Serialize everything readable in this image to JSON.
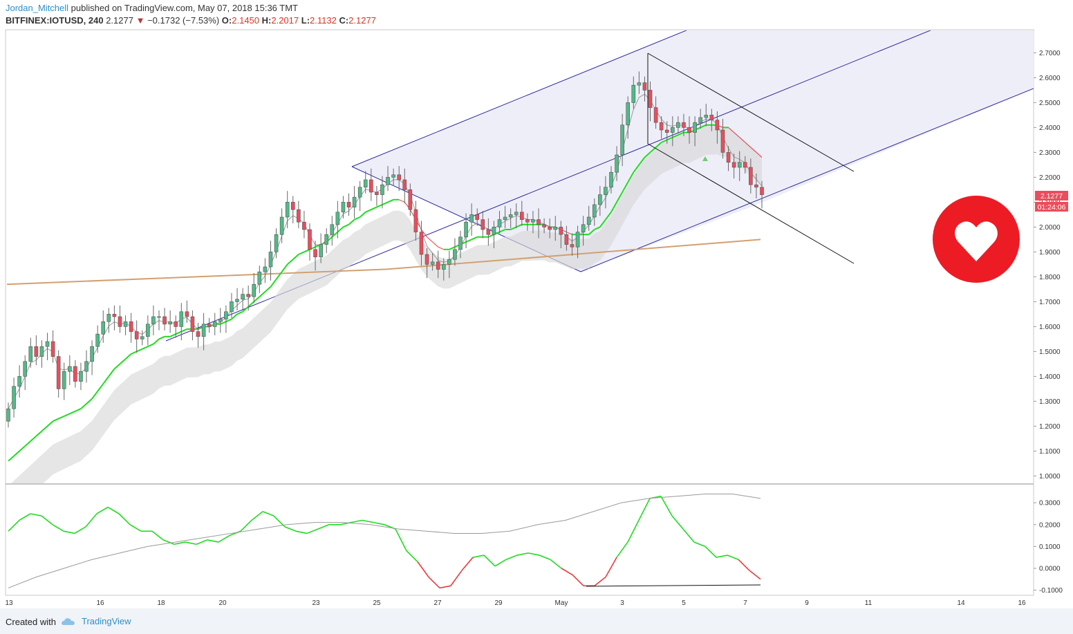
{
  "header": {
    "author": "Jordan_Mitchell",
    "published": "published on TradingView.com, May 07, 2018 15:36 TMT",
    "symbol": "BITFINEX:IOTUSD, 240",
    "last": "2.1277",
    "change": "−0.1732 (−7.53%)",
    "o_label": "O:",
    "o_value": "2.1450",
    "h_label": "H:",
    "h_value": "2.2017",
    "l_label": "L:",
    "l_value": "2.1132",
    "c_label": "C:",
    "c_value": "2.1277"
  },
  "price_tags": {
    "last_price": "2.1277",
    "countdown": "01:24:06"
  },
  "footer": {
    "created_with": "Created with",
    "brand": "TradingView"
  },
  "colors": {
    "up": "#53b987",
    "down": "#eb4d5c",
    "ema_up": "#1fdc1f",
    "ema_down": "#e53c3c",
    "sma": "#d2a070",
    "channel": "#2a2aa0",
    "channel_fill": "#eeeef8",
    "badge": "#ed1c24"
  },
  "badge_icon": "heart-icon",
  "chart_data": {
    "type": "candlestick",
    "x_ticks": [
      "13",
      "16",
      "18",
      "20",
      "23",
      "25",
      "27",
      "29",
      "May",
      "3",
      "5",
      "7",
      "9",
      "11",
      "14",
      "16"
    ],
    "price_axis": [
      "2.7000",
      "2.6000",
      "2.5000",
      "2.4000",
      "2.3000",
      "2.2000",
      "2.1000",
      "2.0000",
      "1.9000",
      "1.8000",
      "1.7000",
      "1.6000",
      "1.5000",
      "1.4000",
      "1.3000",
      "1.2000",
      "1.1000",
      "1.0000"
    ],
    "osc_axis": [
      "0.3000",
      "0.2000",
      "0.1000",
      "0.0000",
      "-0.1000"
    ],
    "ylim": [
      0.97,
      2.79
    ],
    "osc_ylim": [
      -0.11,
      0.375
    ],
    "close": [
      1.27,
      1.36,
      1.4,
      1.46,
      1.52,
      1.48,
      1.52,
      1.54,
      1.48,
      1.35,
      1.42,
      1.44,
      1.38,
      1.42,
      1.46,
      1.52,
      1.57,
      1.62,
      1.65,
      1.64,
      1.6,
      1.62,
      1.58,
      1.55,
      1.56,
      1.61,
      1.64,
      1.64,
      1.61,
      1.62,
      1.6,
      1.66,
      1.64,
      1.58,
      1.56,
      1.61,
      1.6,
      1.62,
      1.63,
      1.66,
      1.7,
      1.71,
      1.73,
      1.72,
      1.77,
      1.82,
      1.84,
      1.9,
      1.97,
      2.04,
      2.1,
      2.07,
      2.02,
      1.99,
      1.91,
      1.88,
      1.93,
      1.97,
      2.01,
      2.06,
      2.1,
      2.08,
      2.12,
      2.16,
      2.19,
      2.14,
      2.13,
      2.17,
      2.2,
      2.21,
      2.19,
      2.15,
      2.07,
      1.98,
      1.89,
      1.85,
      1.86,
      1.83,
      1.85,
      1.87,
      1.91,
      1.96,
      2.02,
      2.05,
      2.03,
      1.99,
      1.97,
      2.0,
      2.03,
      2.04,
      2.05,
      2.06,
      2.03,
      2.02,
      2.03,
      2.01,
      2.0,
      1.99,
      2.0,
      1.97,
      1.93,
      1.92,
      1.98,
      2.01,
      2.04,
      2.09,
      2.13,
      2.16,
      2.22,
      2.29,
      2.41,
      2.5,
      2.57,
      2.58,
      2.55,
      2.48,
      2.42,
      2.39,
      2.38,
      2.4,
      2.42,
      2.4,
      2.38,
      2.42,
      2.44,
      2.45,
      2.43,
      2.39,
      2.3,
      2.26,
      2.24,
      2.26,
      2.24,
      2.17,
      2.16,
      2.13
    ],
    "series": [
      {
        "name": "EMA",
        "values": [
          1.06,
          1.08,
          1.1,
          1.12,
          1.14,
          1.16,
          1.18,
          1.2,
          1.22,
          1.23,
          1.24,
          1.25,
          1.26,
          1.27,
          1.29,
          1.31,
          1.34,
          1.37,
          1.4,
          1.43,
          1.45,
          1.47,
          1.49,
          1.5,
          1.51,
          1.52,
          1.53,
          1.55,
          1.56,
          1.56,
          1.57,
          1.58,
          1.59,
          1.59,
          1.59,
          1.6,
          1.6,
          1.61,
          1.61,
          1.62,
          1.63,
          1.65,
          1.66,
          1.68,
          1.7,
          1.72,
          1.74,
          1.76,
          1.79,
          1.82,
          1.85,
          1.87,
          1.89,
          1.9,
          1.91,
          1.92,
          1.93,
          1.94,
          1.96,
          1.98,
          2.0,
          2.01,
          2.03,
          2.04,
          2.06,
          2.07,
          2.08,
          2.09,
          2.1,
          2.11,
          2.11,
          2.1,
          2.07,
          2.03,
          1.99,
          1.96,
          1.94,
          1.92,
          1.91,
          1.91,
          1.92,
          1.93,
          1.94,
          1.95,
          1.96,
          1.96,
          1.96,
          1.97,
          1.98,
          1.99,
          1.99,
          2.0,
          2.01,
          2.01,
          2.01,
          2.01,
          2.01,
          2.0,
          2.0,
          1.99,
          1.98,
          1.97,
          1.97,
          1.97,
          1.97,
          1.99,
          2.0,
          2.03,
          2.06,
          2.1,
          2.14,
          2.18,
          2.22,
          2.25,
          2.28,
          2.3,
          2.32,
          2.34,
          2.35,
          2.36,
          2.37,
          2.38,
          2.38,
          2.39,
          2.4,
          2.41,
          2.41,
          2.41,
          2.4,
          2.4,
          2.38,
          2.36,
          2.34,
          2.32,
          2.3,
          2.28
        ]
      },
      {
        "name": "SMA",
        "values": [
          1.77,
          1.9,
          1.95
        ]
      },
      {
        "name": "Oscillator",
        "values": [
          0.17,
          0.22,
          0.25,
          0.24,
          0.2,
          0.17,
          0.16,
          0.19,
          0.25,
          0.28,
          0.25,
          0.2,
          0.17,
          0.17,
          0.13,
          0.11,
          0.12,
          0.11,
          0.13,
          0.12,
          0.15,
          0.17,
          0.22,
          0.26,
          0.24,
          0.19,
          0.17,
          0.16,
          0.18,
          0.2,
          0.2,
          0.21,
          0.22,
          0.21,
          0.2,
          0.18,
          0.08,
          0.03,
          -0.04,
          -0.09,
          -0.08,
          -0.01,
          0.05,
          0.06,
          0.01,
          0.04,
          0.06,
          0.07,
          0.06,
          0.04,
          0.0,
          -0.03,
          -0.08,
          -0.08,
          -0.04,
          0.05,
          0.12,
          0.22,
          0.32,
          0.33,
          0.24,
          0.18,
          0.12,
          0.1,
          0.05,
          0.06,
          0.04,
          -0.01,
          -0.05
        ]
      },
      {
        "name": "Signal",
        "values": [
          -0.09,
          -0.04,
          0.0,
          0.04,
          0.07,
          0.1,
          0.12,
          0.14,
          0.16,
          0.18,
          0.2,
          0.21,
          0.21,
          0.2,
          0.18,
          0.17,
          0.16,
          0.16,
          0.17,
          0.2,
          0.22,
          0.26,
          0.3,
          0.32,
          0.33,
          0.34,
          0.34,
          0.32
        ]
      }
    ]
  }
}
